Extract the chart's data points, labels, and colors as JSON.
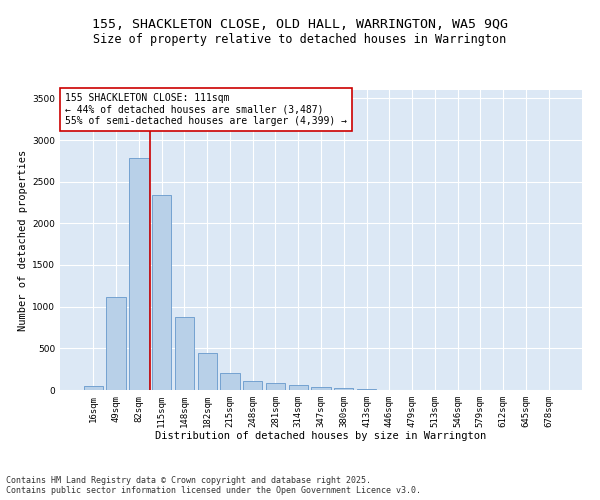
{
  "title_line1": "155, SHACKLETON CLOSE, OLD HALL, WARRINGTON, WA5 9QG",
  "title_line2": "Size of property relative to detached houses in Warrington",
  "xlabel": "Distribution of detached houses by size in Warrington",
  "ylabel": "Number of detached properties",
  "categories": [
    "16sqm",
    "49sqm",
    "82sqm",
    "115sqm",
    "148sqm",
    "182sqm",
    "215sqm",
    "248sqm",
    "281sqm",
    "314sqm",
    "347sqm",
    "380sqm",
    "413sqm",
    "446sqm",
    "479sqm",
    "513sqm",
    "546sqm",
    "579sqm",
    "612sqm",
    "645sqm",
    "678sqm"
  ],
  "values": [
    45,
    1120,
    2780,
    2340,
    880,
    450,
    200,
    105,
    85,
    55,
    40,
    20,
    10,
    5,
    3,
    2,
    1,
    1,
    0,
    0,
    0
  ],
  "bar_color": "#b8d0e8",
  "bar_edge_color": "#6699cc",
  "vline_x": 2.5,
  "vline_color": "#cc0000",
  "annotation_title": "155 SHACKLETON CLOSE: 111sqm",
  "annotation_line2": "← 44% of detached houses are smaller (3,487)",
  "annotation_line3": "55% of semi-detached houses are larger (4,399) →",
  "annotation_box_color": "#cc0000",
  "ylim": [
    0,
    3600
  ],
  "yticks": [
    0,
    500,
    1000,
    1500,
    2000,
    2500,
    3000,
    3500
  ],
  "bg_color": "#dce8f5",
  "grid_color": "#ffffff",
  "footer_line1": "Contains HM Land Registry data © Crown copyright and database right 2025.",
  "footer_line2": "Contains public sector information licensed under the Open Government Licence v3.0.",
  "title_fontsize": 9.5,
  "subtitle_fontsize": 8.5,
  "axis_label_fontsize": 7.5,
  "tick_fontsize": 6.5,
  "annotation_fontsize": 7,
  "footer_fontsize": 6
}
